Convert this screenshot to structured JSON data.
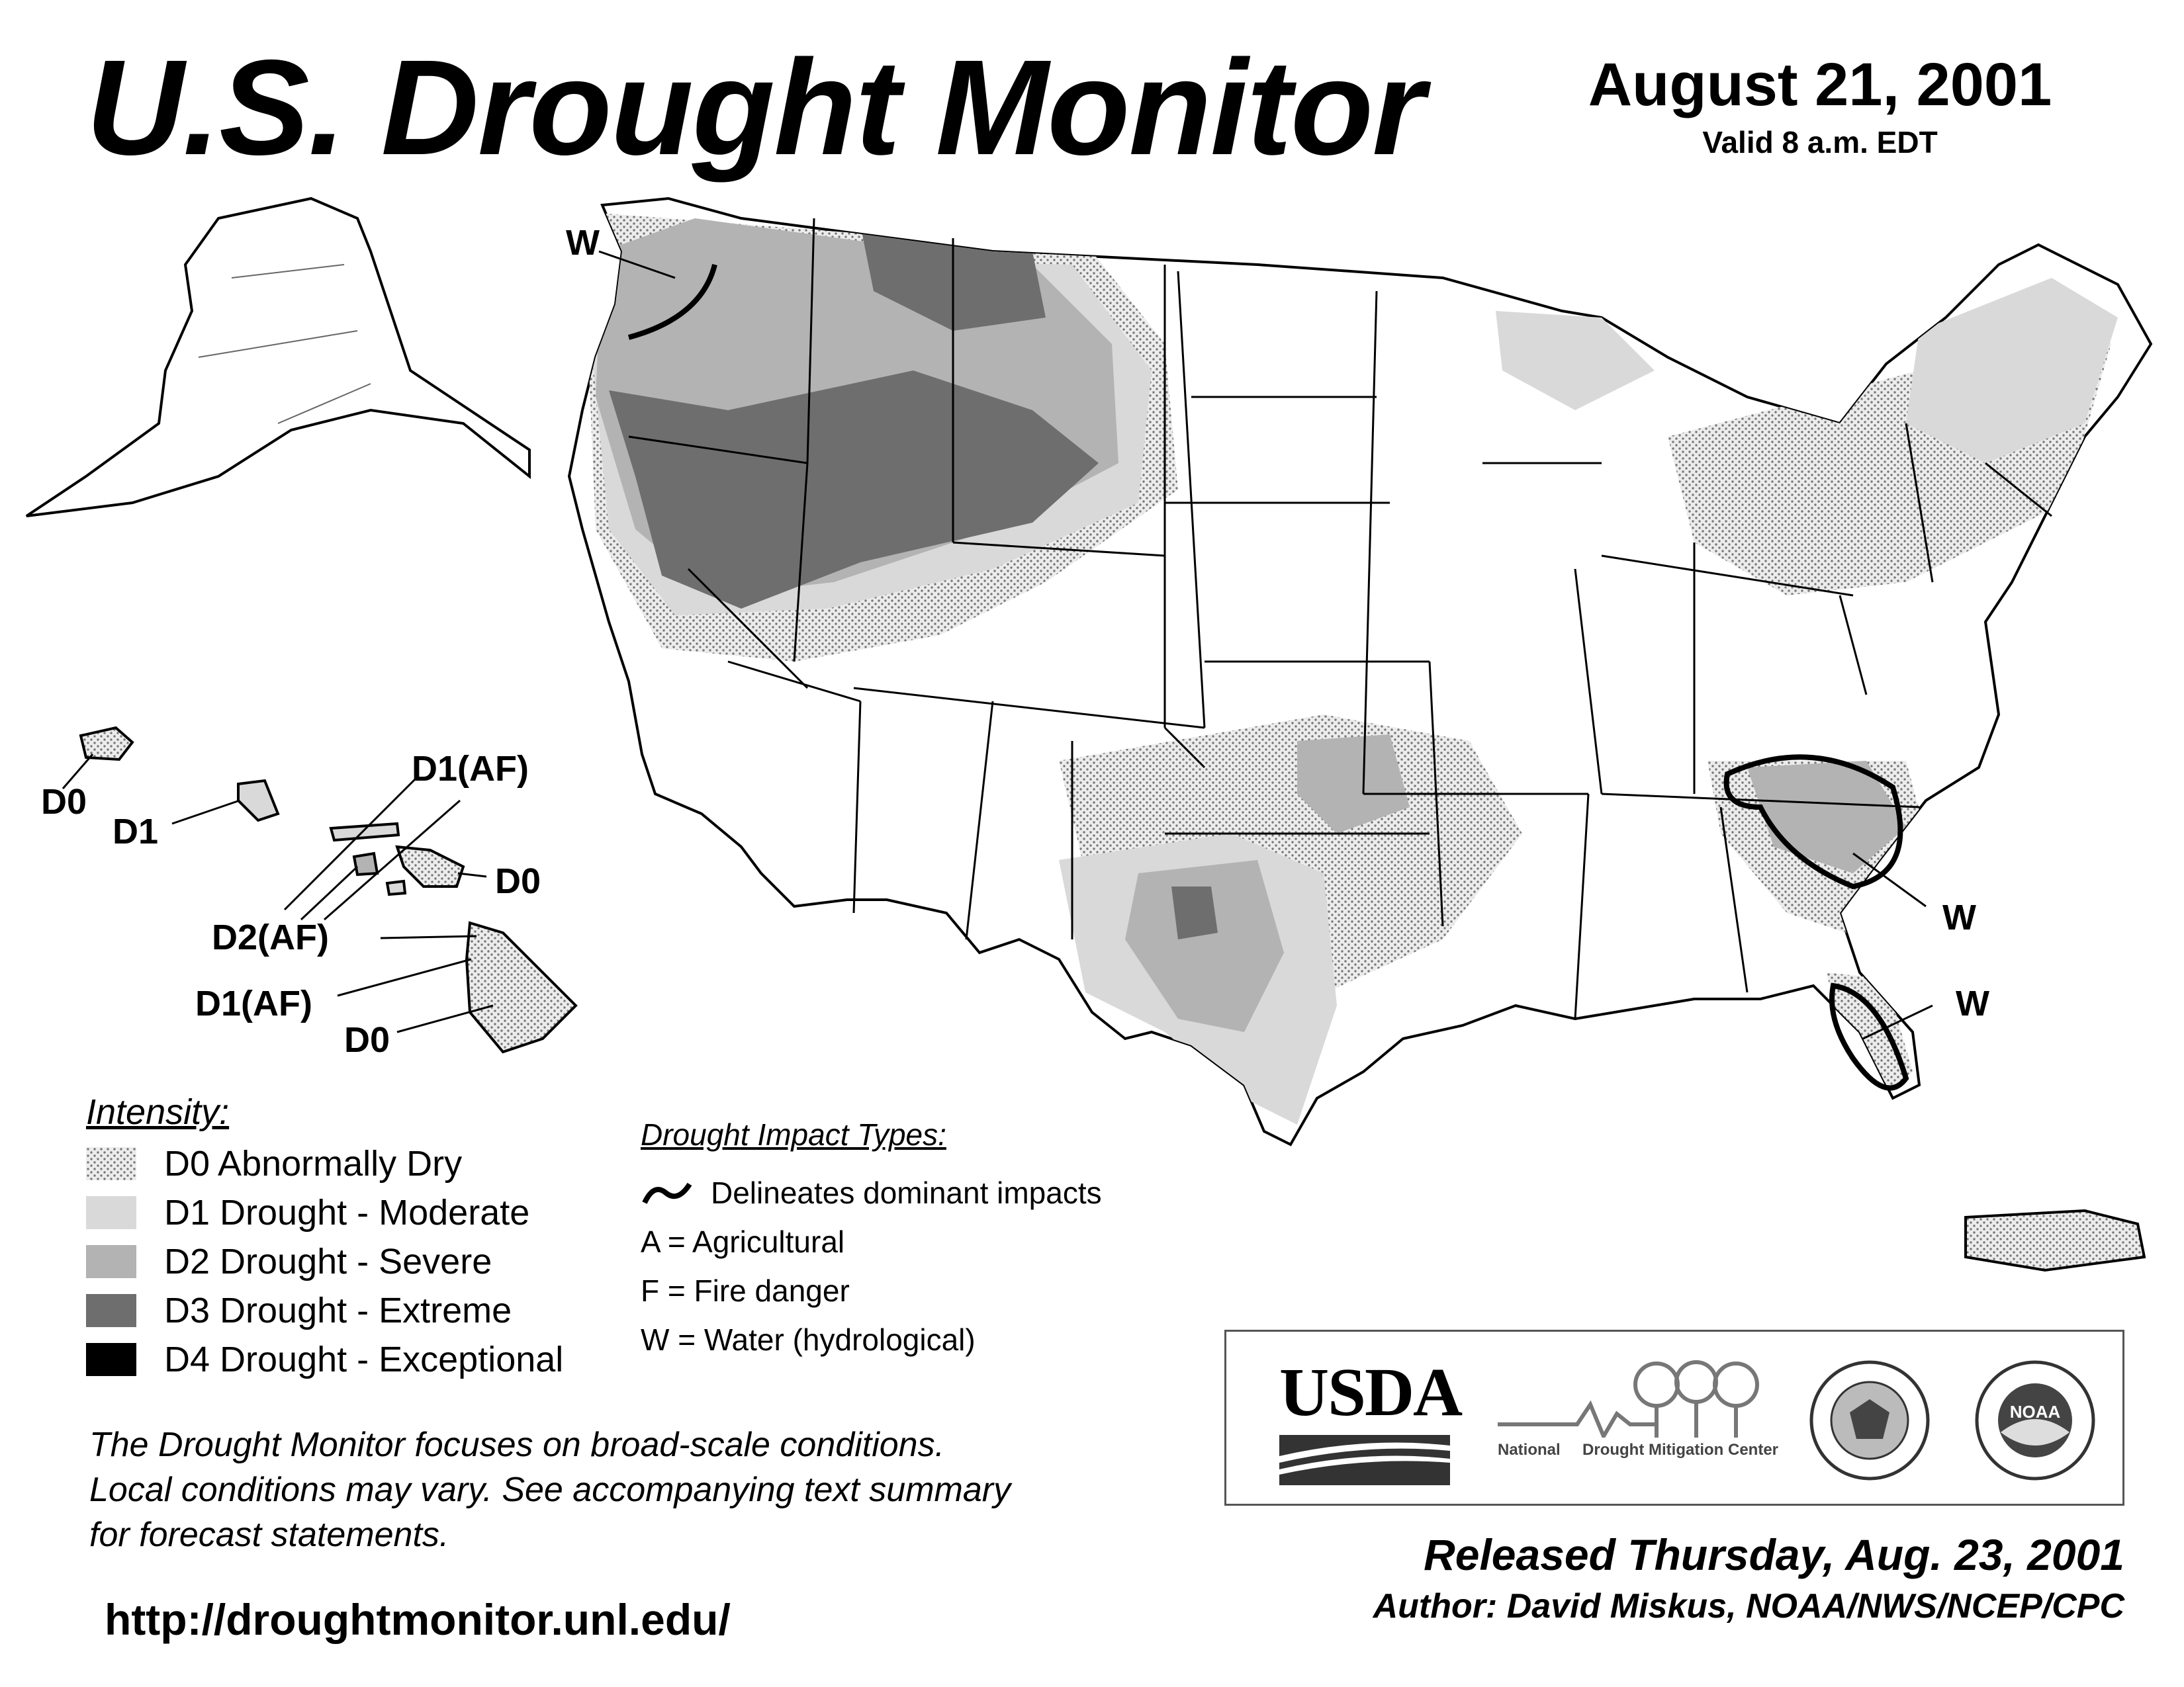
{
  "header": {
    "title": "U.S. Drought Monitor",
    "date": "August 21, 2001",
    "valid": "Valid 8 a.m. EDT"
  },
  "map_labels": {
    "wa_w": "W",
    "hi_kauai": "D0",
    "hi_oahu": "D1",
    "hi_molokai": "D1(AF)",
    "hi_maui": "D0",
    "hi_lanai": "D2(AF)",
    "hi_kahoolawe": "D1(AF)",
    "hi_big_island": "D0",
    "se_w": "W",
    "fl_w": "W"
  },
  "legend": {
    "title": "Intensity:",
    "items": [
      {
        "label": "D0 Abnormally Dry",
        "color": "#e6e6e6",
        "pattern": "dots"
      },
      {
        "label": "D1 Drought - Moderate",
        "color": "#d9d9d9"
      },
      {
        "label": "D2 Drought - Severe",
        "color": "#b3b3b3"
      },
      {
        "label": "D3 Drought - Extreme",
        "color": "#6e6e6e"
      },
      {
        "label": "D4 Drought - Exceptional",
        "color": "#000000"
      }
    ]
  },
  "impacts": {
    "title": "Drought Impact Types:",
    "delineates": "Delineates dominant impacts",
    "types": [
      "A = Agricultural",
      "F = Fire danger",
      "W = Water (hydrological)"
    ]
  },
  "note": {
    "lines": [
      "The Drought Monitor focuses on broad-scale conditions.",
      "Local conditions may vary. See accompanying text summary",
      "for forecast statements."
    ]
  },
  "url": "http://droughtmonitor.unl.edu/",
  "logos": {
    "usda": "USDA",
    "ndmc_left": "National",
    "ndmc_right": "Drought Mitigation Center",
    "noaa": "NOAA"
  },
  "footer": {
    "released": "Released Thursday, Aug. 23, 2001",
    "author": "Author: David Miskus, NOAA/NWS/NCEP/CPC"
  }
}
